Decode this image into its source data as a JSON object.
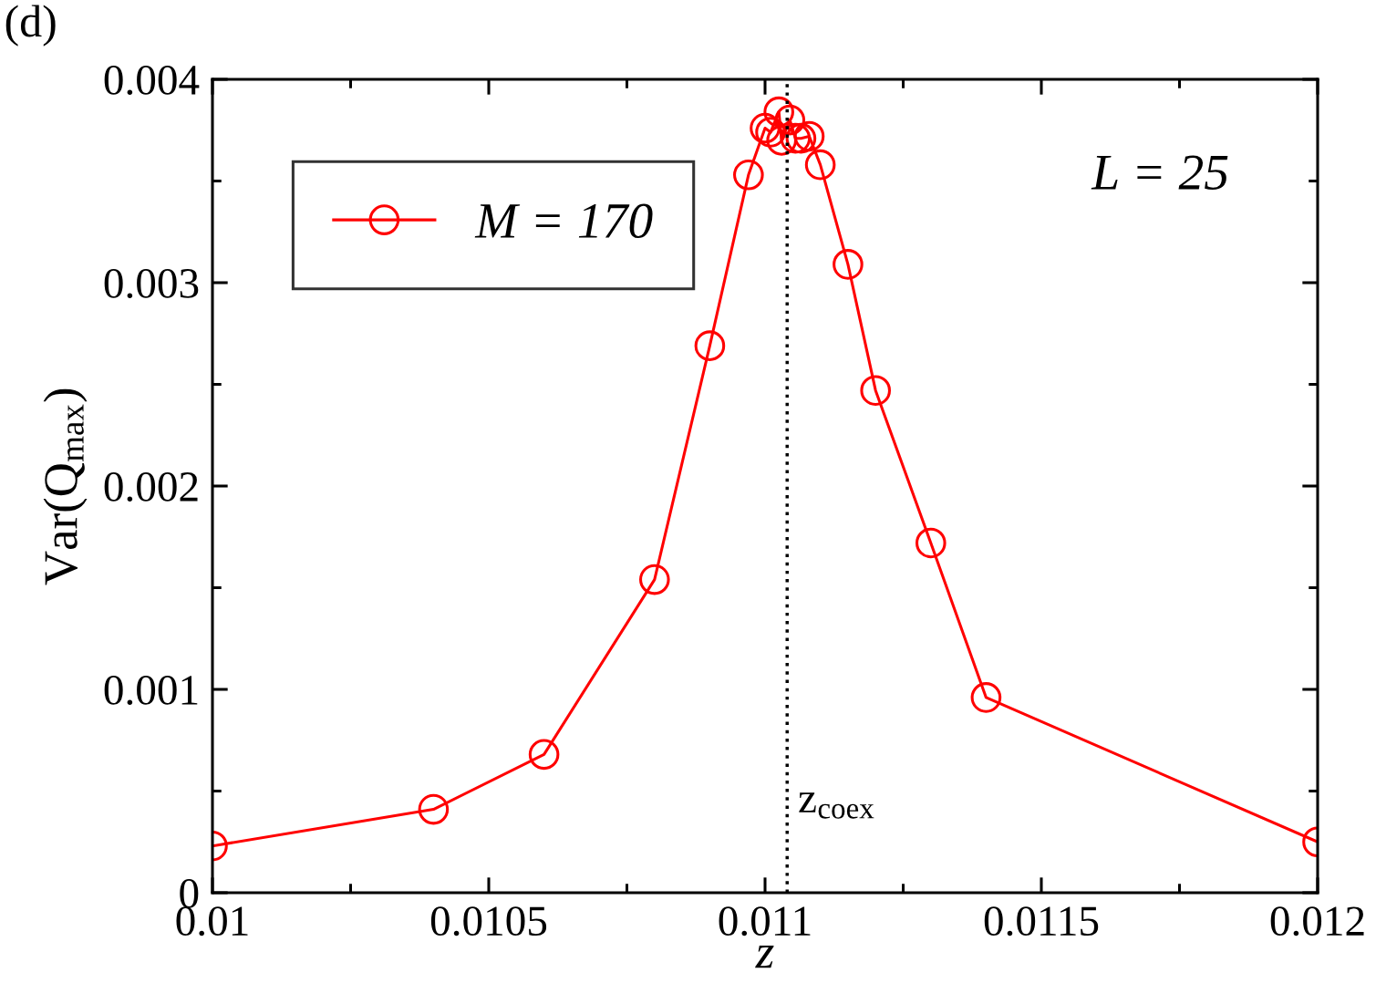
{
  "chart_data": {
    "type": "line",
    "xlabel": "z",
    "ylabel": "Var(Q$_{max}$)",
    "x": [
      0.01,
      0.0104,
      0.0106,
      0.0108,
      0.0109,
      0.01097,
      0.011,
      0.01101,
      0.011025,
      0.01103,
      0.011045,
      0.011055,
      0.011065,
      0.01108,
      0.0111,
      0.01115,
      0.0112,
      0.0113,
      0.0114,
      0.012
    ],
    "series": [
      {
        "name": "M = 170",
        "color": "#ff0000",
        "values": [
          0.00023,
          0.00041,
          0.00068,
          0.00154,
          0.00269,
          0.00353,
          0.00376,
          0.00374,
          0.00384,
          0.0037,
          0.0038,
          0.00371,
          0.00371,
          0.00372,
          0.00358,
          0.00309,
          0.00247,
          0.00172,
          0.00096,
          0.00025
        ]
      }
    ],
    "xlim": [
      0.01,
      0.012
    ],
    "ylim": [
      0,
      0.004
    ],
    "xticks": [
      0.01,
      {
        "value": 0.01025,
        "label": null
      },
      0.0105,
      {
        "value": 0.01075,
        "label": null
      },
      0.011,
      {
        "value": 0.01125,
        "label": null
      },
      0.0115,
      {
        "value": 0.01175,
        "label": null
      },
      0.012
    ],
    "yticks": [
      0,
      {
        "value": 0.0005,
        "label": null
      },
      0.001,
      {
        "value": 0.0015,
        "label": null
      },
      0.002,
      {
        "value": 0.0025,
        "label": null
      },
      0.003,
      {
        "value": 0.0035,
        "label": null
      },
      0.004
    ],
    "ref_lines": [
      {
        "axis": "x",
        "value": 0.01104,
        "label": "z$_{coex}$",
        "color": "#000000",
        "line_style": "dotted"
      }
    ],
    "annotations": [
      "(d)",
      "L = 25"
    ],
    "marker": "circle",
    "line_style": "solid",
    "legend": "top left",
    "grid": false
  }
}
